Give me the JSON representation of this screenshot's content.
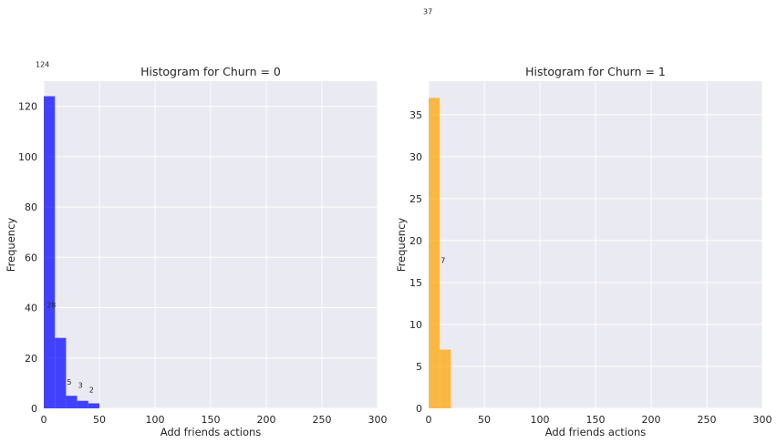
{
  "chart_data": [
    {
      "type": "bar",
      "title": "Histogram for Churn = 0",
      "xlabel": "Add friends actions",
      "ylabel": "Frequency",
      "xlim": [
        0,
        300
      ],
      "ylim": [
        0,
        130
      ],
      "xticks": [
        0,
        50,
        100,
        150,
        200,
        250,
        300
      ],
      "yticks": [
        0,
        20,
        40,
        60,
        80,
        100,
        120
      ],
      "grid": true,
      "color": "#0000ff",
      "bins": [
        {
          "x0": 0,
          "x1": 10,
          "value": 124,
          "label": "124"
        },
        {
          "x0": 10,
          "x1": 20,
          "value": 28,
          "label": "28"
        },
        {
          "x0": 20,
          "x1": 30,
          "value": 5,
          "label": "5"
        },
        {
          "x0": 30,
          "x1": 40,
          "value": 3,
          "label": "3"
        },
        {
          "x0": 40,
          "x1": 50,
          "value": 2,
          "label": "2"
        }
      ]
    },
    {
      "type": "bar",
      "title": "Histogram for Churn = 1",
      "xlabel": "Add friends actions",
      "ylabel": "Frequency",
      "xlim": [
        0,
        300
      ],
      "ylim": [
        0,
        39
      ],
      "xticks": [
        0,
        50,
        100,
        150,
        200,
        250,
        300
      ],
      "yticks": [
        0,
        5,
        10,
        15,
        20,
        25,
        30,
        35
      ],
      "grid": true,
      "color": "#ffa500",
      "bins": [
        {
          "x0": 0,
          "x1": 10,
          "value": 37,
          "label": "37"
        },
        {
          "x0": 10,
          "x1": 20,
          "value": 7,
          "label": "7"
        }
      ]
    }
  ]
}
